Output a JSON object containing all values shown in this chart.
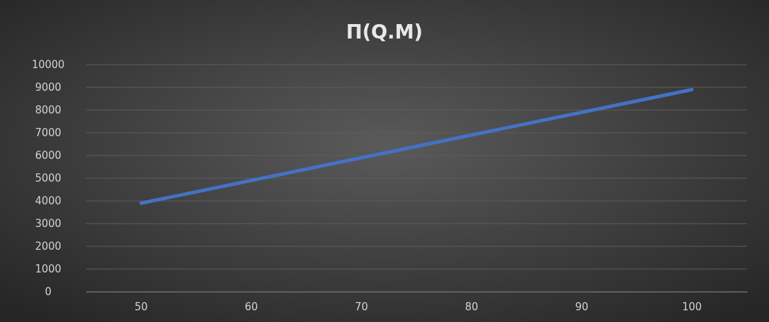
{
  "chart_data": {
    "type": "line",
    "title": "П(Q.M)",
    "categories": [
      "50",
      "60",
      "70",
      "80",
      "90",
      "100"
    ],
    "series": [
      {
        "color": "#4472c4",
        "values": [
          3900,
          4900,
          5900,
          6900,
          7900,
          8900
        ]
      }
    ],
    "ylim": [
      0,
      10000
    ],
    "yticks": [
      0,
      1000,
      2000,
      3000,
      4000,
      5000,
      6000,
      7000,
      8000,
      9000,
      10000
    ],
    "grid": "y"
  }
}
